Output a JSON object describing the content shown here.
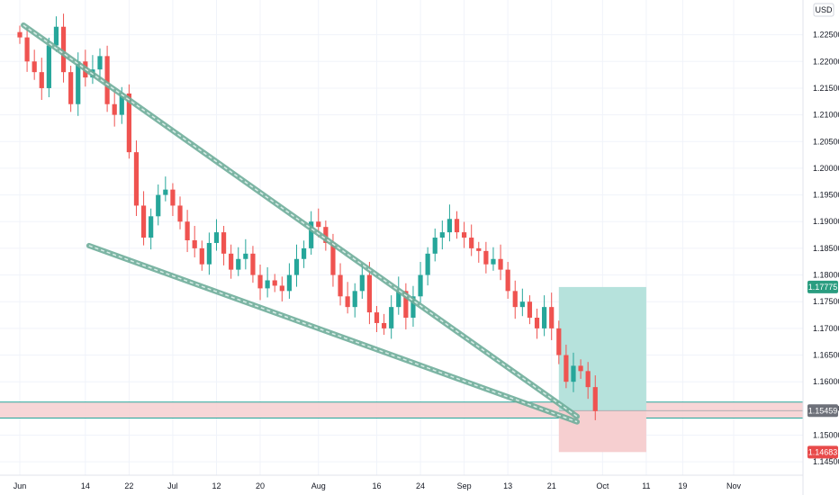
{
  "chart_data": {
    "type": "candlestick",
    "currency": "USD",
    "y_axis": {
      "range": [
        1.1425,
        1.2305
      ],
      "ticks": [
        "1.22500",
        "1.22000",
        "1.21500",
        "1.21000",
        "1.20500",
        "1.20000",
        "1.19500",
        "1.19000",
        "1.18500",
        "1.18000",
        "1.17500",
        "1.17000",
        "1.16500",
        "1.16000",
        "1.15500",
        "1.15000",
        "1.14500"
      ]
    },
    "x_axis": {
      "ticks": [
        {
          "label": "Jun",
          "index": 1
        },
        {
          "label": "14",
          "index": 10
        },
        {
          "label": "22",
          "index": 16
        },
        {
          "label": "Jul",
          "index": 22
        },
        {
          "label": "12",
          "index": 28
        },
        {
          "label": "20",
          "index": 34
        },
        {
          "label": "Aug",
          "index": 42
        },
        {
          "label": "16",
          "index": 50
        },
        {
          "label": "24",
          "index": 56
        },
        {
          "label": "Sep",
          "index": 62
        },
        {
          "label": "13",
          "index": 68
        },
        {
          "label": "21",
          "index": 74
        },
        {
          "label": "Oct",
          "index": 81
        },
        {
          "label": "11",
          "index": 87
        },
        {
          "label": "19",
          "index": 92
        },
        {
          "label": "Nov",
          "index": 99
        }
      ],
      "count": 102
    },
    "series_close": [
      1.2245,
      1.22,
      1.218,
      1.215,
      1.223,
      1.2265,
      1.218,
      1.212,
      1.22,
      1.217,
      1.2185,
      1.221,
      1.212,
      1.21,
      1.214,
      1.203,
      1.193,
      1.187,
      1.191,
      1.195,
      1.196,
      1.193,
      1.19,
      1.1865,
      1.185,
      1.182,
      1.186,
      1.188,
      1.184,
      1.181,
      1.183,
      1.184,
      1.18,
      1.1775,
      1.179,
      1.178,
      1.177,
      1.18,
      1.183,
      1.185,
      1.19,
      1.189,
      1.186,
      1.18,
      1.176,
      1.174,
      1.177,
      1.18,
      1.173,
      1.171,
      1.17,
      1.174,
      1.177,
      1.172,
      1.176,
      1.18,
      1.184,
      1.187,
      1.188,
      1.1905,
      1.188,
      1.187,
      1.185,
      1.1845,
      1.182,
      1.183,
      1.181,
      1.177,
      1.174,
      1.175,
      1.172,
      1.17,
      1.174,
      1.17,
      1.165,
      1.16,
      1.163,
      1.162,
      1.159,
      1.1545
    ],
    "price_tags": [
      {
        "value": "1.17775",
        "level": 1.17775,
        "color": "#2a9d80"
      },
      {
        "value": "1.15459",
        "level": 1.15459,
        "color": "#6e717a"
      },
      {
        "value": "1.14683",
        "level": 1.14683,
        "color": "#e84a4a"
      }
    ],
    "zones": {
      "support": [
        1.1532,
        1.1562
      ],
      "position": {
        "entry": 1.15459,
        "target": 1.17775,
        "stop": 1.14683,
        "start_index": 75,
        "end_index": 87
      }
    },
    "trendlines": [
      {
        "from": {
          "index": 1.5,
          "price": 1.2268
        },
        "to": {
          "index": 77.5,
          "price": 1.1535
        }
      },
      {
        "from": {
          "index": 10.5,
          "price": 1.1855
        },
        "to": {
          "index": 77.5,
          "price": 1.1525
        }
      }
    ],
    "colors": {
      "up": "#26a69a",
      "down": "#ef5350",
      "trend": "#6fae9b",
      "profit": "#b6e2dc",
      "loss": "#f6cfd0"
    }
  }
}
